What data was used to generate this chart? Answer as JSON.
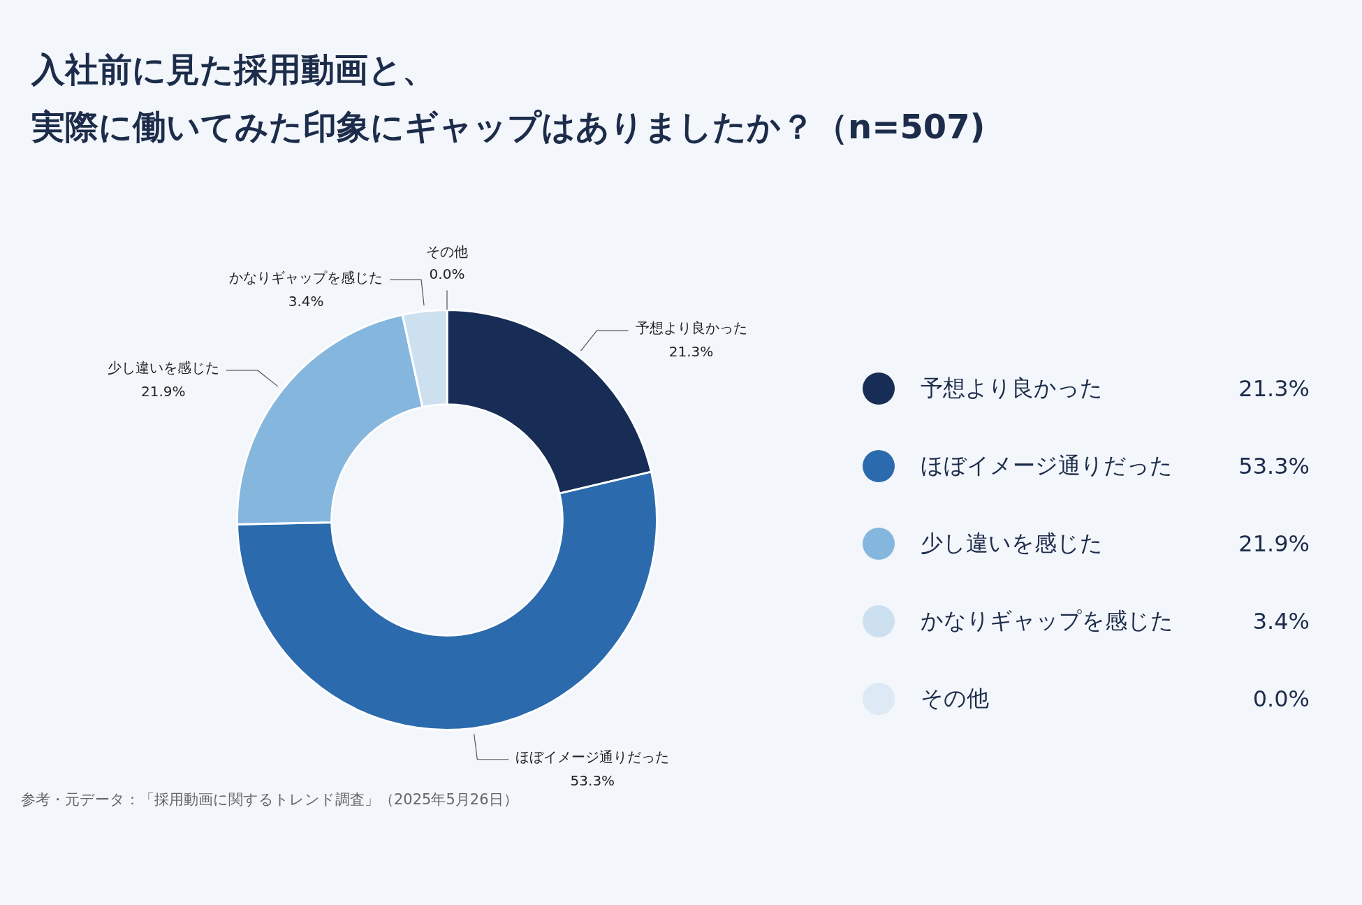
{
  "chart_data": {
    "type": "donut",
    "title": "入社前に見た採用動画と、実際に働いてみた印象にギャップはありましたか？（n=507)",
    "categories": [
      "予想より良かった",
      "ほぼイメージ通りだった",
      "少し違いを感じた",
      "かなりギャップを感じた",
      "その他"
    ],
    "values": [
      21.3,
      53.3,
      21.9,
      3.4,
      0.0
    ],
    "colors": [
      "#172d55",
      "#2b6aad",
      "#84b6de",
      "#cde0ef",
      "#dde9f4"
    ],
    "value_labels": [
      "21.3%",
      "53.3%",
      "21.9%",
      "3.4%",
      "0.0%"
    ],
    "legend": "right",
    "annotations": [
      "参考・元データ：「採用動画に関するトレンド調査」（2025年5月26日）"
    ]
  }
}
